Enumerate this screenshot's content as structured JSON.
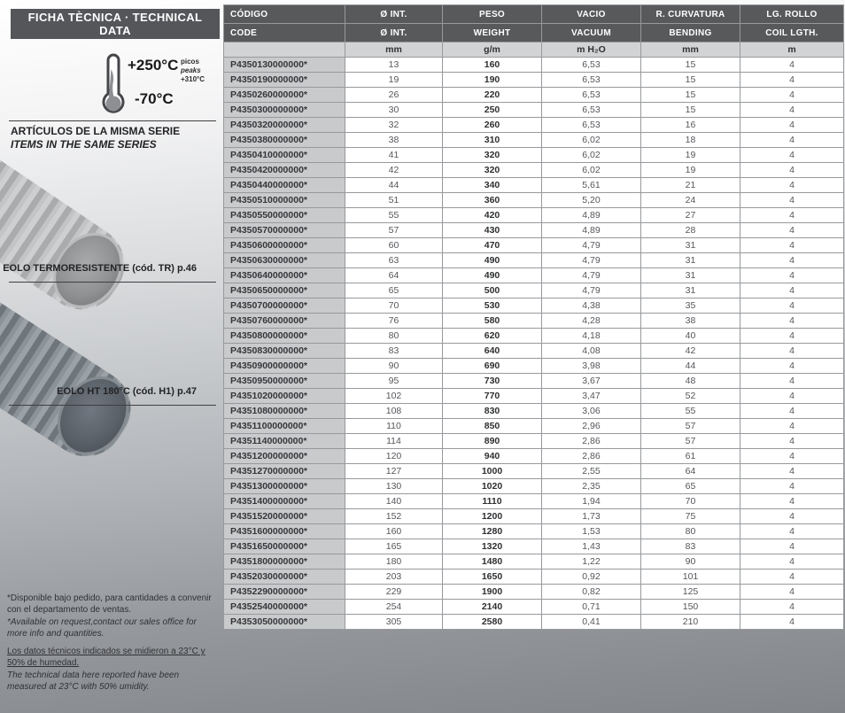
{
  "panel": {
    "title": "FICHA TÈCNICA · TECHNICAL DATA",
    "thermometer": {
      "temp_high": "+250°C",
      "temp_low": "-70°C",
      "peaks_label_es": "picos",
      "peaks_label_en": "peaks",
      "peaks_value": "+310°C"
    },
    "series_heading_es": "ARTÍCULOS DE LA MISMA SERIE",
    "series_heading_en": "ITEMS IN THE SAME SERIES",
    "item1_caption": "EOLO TERMORESISTENTE (cód. TR) p.46",
    "item2_caption": "EOLO HT 180°C (cód. H1) p.47",
    "footnotes": {
      "availability_es": "*Disponible bajo pedido, para cantidades a convenir con el departamento de ventas.",
      "availability_en": "*Available on request,contact our sales office for more info and quantities.",
      "conditions_es": "Los datos técnicos indicados se midieron a 23°C y 50% de humedad.",
      "conditions_en": "The technical data here reported have been measured at 23°C with 50% umidity."
    }
  },
  "table": {
    "header_es": [
      "CÓDIGO",
      "Ø INT.",
      "PESO",
      "VACIO",
      "R. CURVATURA",
      "LG. ROLLO"
    ],
    "header_en": [
      "CODE",
      "Ø INT.",
      "WEIGHT",
      "VACUUM",
      "BENDING",
      "COIL LGTH."
    ],
    "units": [
      "",
      "mm",
      "g/m",
      "m H₂O",
      "mm",
      "m"
    ],
    "rows": [
      [
        "P4350130000000*",
        "13",
        "160",
        "6,53",
        "15",
        "4"
      ],
      [
        "P4350190000000*",
        "19",
        "190",
        "6,53",
        "15",
        "4"
      ],
      [
        "P4350260000000*",
        "26",
        "220",
        "6,53",
        "15",
        "4"
      ],
      [
        "P4350300000000*",
        "30",
        "250",
        "6,53",
        "15",
        "4"
      ],
      [
        "P4350320000000*",
        "32",
        "260",
        "6,53",
        "16",
        "4"
      ],
      [
        "P4350380000000*",
        "38",
        "310",
        "6,02",
        "18",
        "4"
      ],
      [
        "P4350410000000*",
        "41",
        "320",
        "6,02",
        "19",
        "4"
      ],
      [
        "P4350420000000*",
        "42",
        "320",
        "6,02",
        "19",
        "4"
      ],
      [
        "P4350440000000*",
        "44",
        "340",
        "5,61",
        "21",
        "4"
      ],
      [
        "P4350510000000*",
        "51",
        "360",
        "5,20",
        "24",
        "4"
      ],
      [
        "P4350550000000*",
        "55",
        "420",
        "4,89",
        "27",
        "4"
      ],
      [
        "P4350570000000*",
        "57",
        "430",
        "4,89",
        "28",
        "4"
      ],
      [
        "P4350600000000*",
        "60",
        "470",
        "4,79",
        "31",
        "4"
      ],
      [
        "P4350630000000*",
        "63",
        "490",
        "4,79",
        "31",
        "4"
      ],
      [
        "P4350640000000*",
        "64",
        "490",
        "4,79",
        "31",
        "4"
      ],
      [
        "P4350650000000*",
        "65",
        "500",
        "4,79",
        "31",
        "4"
      ],
      [
        "P4350700000000*",
        "70",
        "530",
        "4,38",
        "35",
        "4"
      ],
      [
        "P4350760000000*",
        "76",
        "580",
        "4,28",
        "38",
        "4"
      ],
      [
        "P4350800000000*",
        "80",
        "620",
        "4,18",
        "40",
        "4"
      ],
      [
        "P4350830000000*",
        "83",
        "640",
        "4,08",
        "42",
        "4"
      ],
      [
        "P4350900000000*",
        "90",
        "690",
        "3,98",
        "44",
        "4"
      ],
      [
        "P4350950000000*",
        "95",
        "730",
        "3,67",
        "48",
        "4"
      ],
      [
        "P4351020000000*",
        "102",
        "770",
        "3,47",
        "52",
        "4"
      ],
      [
        "P4351080000000*",
        "108",
        "830",
        "3,06",
        "55",
        "4"
      ],
      [
        "P4351100000000*",
        "110",
        "850",
        "2,96",
        "57",
        "4"
      ],
      [
        "P4351140000000*",
        "114",
        "890",
        "2,86",
        "57",
        "4"
      ],
      [
        "P4351200000000*",
        "120",
        "940",
        "2,86",
        "61",
        "4"
      ],
      [
        "P4351270000000*",
        "127",
        "1000",
        "2,55",
        "64",
        "4"
      ],
      [
        "P4351300000000*",
        "130",
        "1020",
        "2,35",
        "65",
        "4"
      ],
      [
        "P4351400000000*",
        "140",
        "1110",
        "1,94",
        "70",
        "4"
      ],
      [
        "P4351520000000*",
        "152",
        "1200",
        "1,73",
        "75",
        "4"
      ],
      [
        "P4351600000000*",
        "160",
        "1280",
        "1,53",
        "80",
        "4"
      ],
      [
        "P4351650000000*",
        "165",
        "1320",
        "1,43",
        "83",
        "4"
      ],
      [
        "P4351800000000*",
        "180",
        "1480",
        "1,22",
        "90",
        "4"
      ],
      [
        "P4352030000000*",
        "203",
        "1650",
        "0,92",
        "101",
        "4"
      ],
      [
        "P4352290000000*",
        "229",
        "1900",
        "0,82",
        "125",
        "4"
      ],
      [
        "P4352540000000*",
        "254",
        "2140",
        "0,71",
        "150",
        "4"
      ],
      [
        "P4353050000000*",
        "305",
        "2580",
        "0,41",
        "210",
        "4"
      ]
    ]
  },
  "colors": {
    "header_bg": "#58595b",
    "units_bg": "#d2d3d5",
    "code_cell_bg": "#c9cacc",
    "title_bar_bg": "#55565a",
    "page_gradient_bottom": "#828589"
  }
}
